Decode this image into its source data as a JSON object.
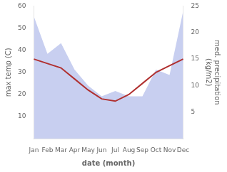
{
  "chart_data": {
    "type": "line",
    "categories": [
      "Jan",
      "Feb",
      "Mar",
      "Apr",
      "May",
      "Jun",
      "Jul",
      "Aug",
      "Sep",
      "Oct",
      "Nov",
      "Dec"
    ],
    "series": [
      {
        "type": "area",
        "color": "#c8cff0",
        "axis": "y2",
        "values": [
          23,
          16,
          18,
          13,
          10,
          8,
          9,
          8,
          8,
          13,
          12,
          24
        ]
      },
      {
        "type": "line",
        "color": "#b03030",
        "values": [
          36,
          34,
          32,
          27,
          22,
          18,
          17,
          20,
          25,
          30,
          33,
          36
        ]
      }
    ],
    "xlabel": "date (month)",
    "ylabel": "max temp (C)",
    "y2label": "med. precipitation\n(kg/m2)",
    "ylim": [
      0,
      60
    ],
    "yticks": [
      10,
      20,
      30,
      40,
      50,
      60
    ],
    "y2lim": [
      0,
      25
    ],
    "y2ticks": [
      5,
      10,
      15,
      20,
      25
    ],
    "grid": false
  }
}
